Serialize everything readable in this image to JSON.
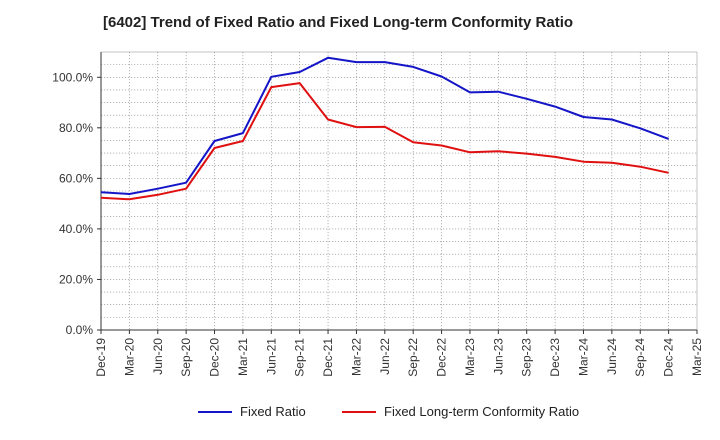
{
  "chart_data": {
    "type": "line",
    "title": "[6402]  Trend of Fixed Ratio and Fixed Long-term Conformity Ratio",
    "xlabel": "",
    "ylabel": "",
    "categories": [
      "Dec-19",
      "Mar-20",
      "Jun-20",
      "Sep-20",
      "Dec-20",
      "Mar-21",
      "Jun-21",
      "Sep-21",
      "Dec-21",
      "Mar-22",
      "Jun-22",
      "Sep-22",
      "Dec-22",
      "Mar-23",
      "Jun-23",
      "Sep-23",
      "Dec-23",
      "Mar-24",
      "Jun-24",
      "Sep-24",
      "Dec-24",
      "Mar-25"
    ],
    "yticks": [
      "0.0%",
      "20.0%",
      "40.0%",
      "60.0%",
      "80.0%",
      "100.0%"
    ],
    "ylim": [
      0,
      110
    ],
    "grid": true,
    "legend_position": "bottom",
    "series": [
      {
        "name": "Fixed Ratio",
        "color": "#1515c8",
        "values": [
          54.5,
          53.8,
          55.9,
          58.3,
          74.8,
          77.9,
          100.2,
          102.1,
          107.7,
          106.0,
          106.0,
          104.1,
          100.3,
          94.0,
          94.3,
          91.5,
          88.4,
          84.3,
          83.3,
          79.8,
          75.6,
          null
        ]
      },
      {
        "name": "Fixed Long-term Conformity Ratio",
        "color": "#e01010",
        "values": [
          52.3,
          51.7,
          53.5,
          55.9,
          72.0,
          74.8,
          96.1,
          97.7,
          83.3,
          80.3,
          80.4,
          74.3,
          73.0,
          70.3,
          70.7,
          69.8,
          68.5,
          66.6,
          66.2,
          64.6,
          62.2,
          null
        ]
      }
    ]
  }
}
